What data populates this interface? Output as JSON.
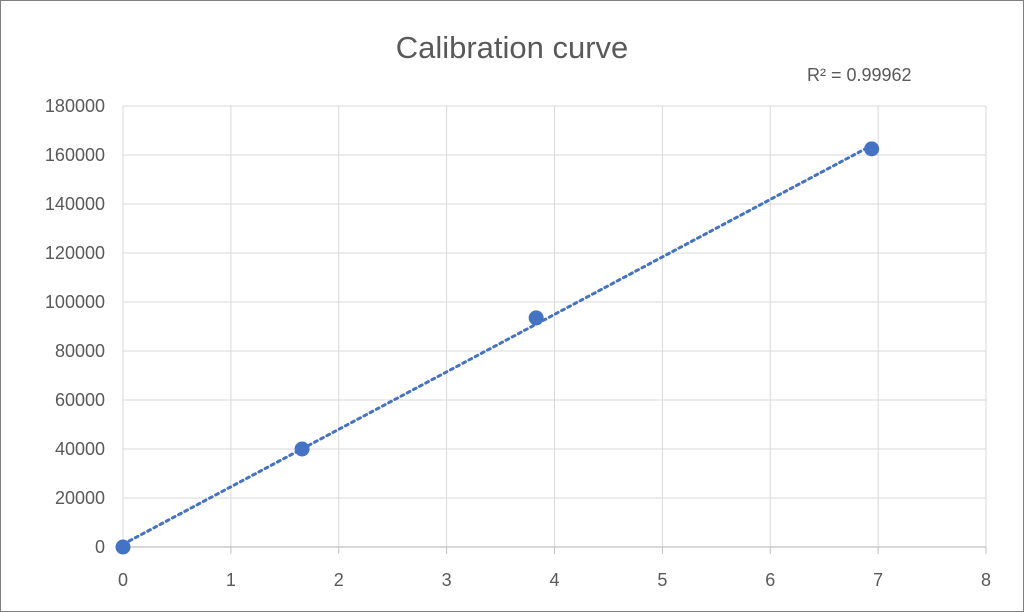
{
  "chart_data": {
    "type": "scatter",
    "title": "Calibration curve",
    "xlabel": "",
    "ylabel": "",
    "xlim": [
      0,
      8
    ],
    "ylim": [
      0,
      180000
    ],
    "x_ticks": [
      0,
      1,
      2,
      3,
      4,
      5,
      6,
      7,
      8
    ],
    "y_ticks": [
      0,
      20000,
      40000,
      60000,
      80000,
      100000,
      120000,
      140000,
      160000,
      180000
    ],
    "grid": true,
    "legend": "none",
    "series": [
      {
        "x": [
          0,
          1.66,
          3.83,
          6.94
        ],
        "y": [
          0,
          40000,
          93500,
          162500
        ],
        "color": "#4472C4"
      }
    ],
    "trendline": {
      "type": "linear",
      "style": "dotted",
      "color": "#4472C4",
      "x_range": [
        0,
        6.94
      ],
      "r_squared_label": "R² = 0.99962"
    }
  }
}
